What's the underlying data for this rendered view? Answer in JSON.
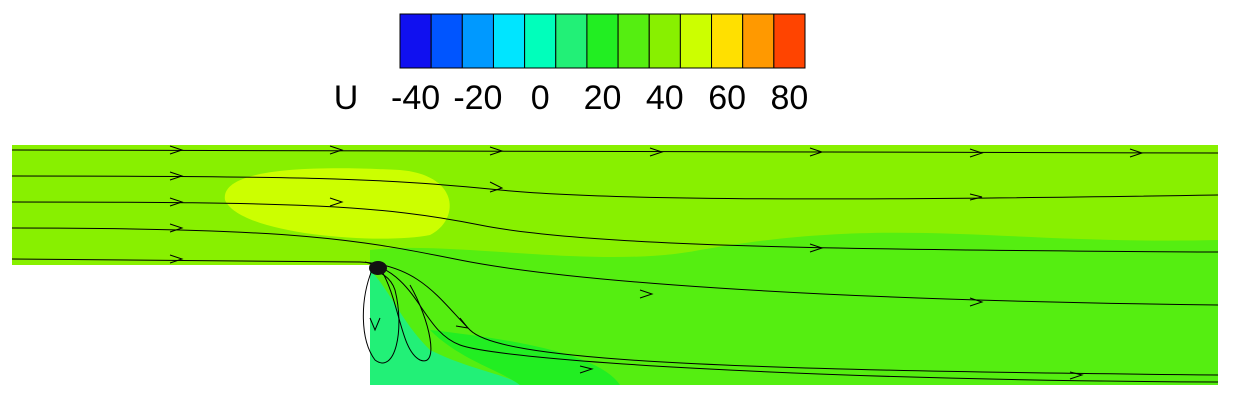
{
  "chart_data": {
    "type": "contour",
    "colorbar": {
      "label": "U",
      "levels": [
        -45,
        -35,
        -25,
        -15,
        -5,
        5,
        15,
        25,
        35,
        45,
        55,
        65,
        75,
        85
      ],
      "colors": [
        "#1010f0",
        "#0055ff",
        "#0099ff",
        "#00e5ff",
        "#00ffbb",
        "#22f077",
        "#22ee22",
        "#55ee11",
        "#88f000",
        "#ccff00",
        "#ffe000",
        "#ff9900",
        "#ff4400",
        "#ee0000"
      ],
      "lim": [
        -45,
        85
      ],
      "ticks": [
        -40,
        -20,
        0,
        20,
        40,
        60,
        80
      ]
    },
    "field": {
      "regions": [
        38,
        30,
        40,
        48,
        10,
        20
      ]
    }
  }
}
